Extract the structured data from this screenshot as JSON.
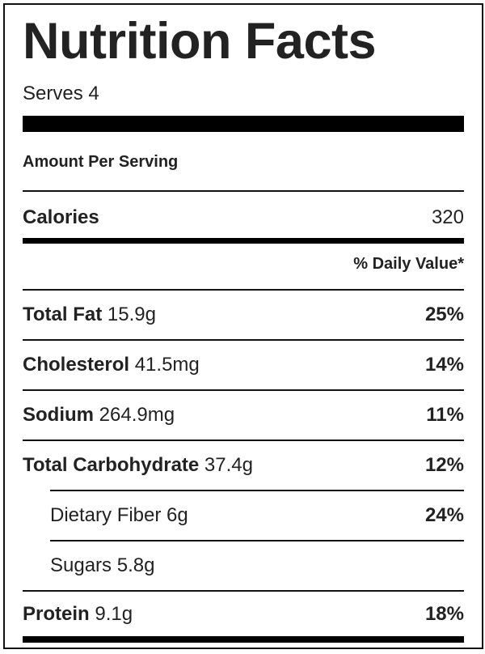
{
  "title": "Nutrition Facts",
  "serves": "Serves 4",
  "amount_per_serving": "Amount Per Serving",
  "calories": {
    "label": "Calories",
    "value": "320"
  },
  "daily_value_header": "% Daily Value*",
  "nutrients": [
    {
      "name": "Total Fat",
      "amount": "15.9g",
      "dv": "25%"
    },
    {
      "name": "Cholesterol",
      "amount": "41.5mg",
      "dv": "14%"
    },
    {
      "name": "Sodium",
      "amount": "264.9mg",
      "dv": "11%"
    },
    {
      "name": "Total Carbohydrate",
      "amount": "37.4g",
      "dv": "12%"
    },
    {
      "name": "Dietary Fiber",
      "amount": "6g",
      "dv": "24%"
    },
    {
      "name": "Sugars",
      "amount": "5.8g",
      "dv": ""
    },
    {
      "name": "Protein",
      "amount": "9.1g",
      "dv": "18%"
    }
  ]
}
